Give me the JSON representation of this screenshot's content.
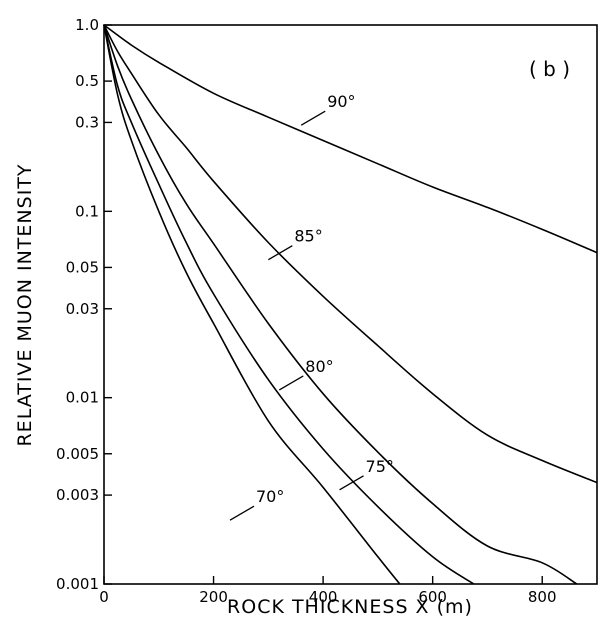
{
  "chart_data": {
    "type": "line",
    "title": "",
    "panel_label": "( b )",
    "xlabel": "ROCK THICKNESS X (m)",
    "ylabel": "RELATIVE MUON INTENSITY",
    "xlim": [
      0,
      900
    ],
    "ylim": [
      0.001,
      1.0
    ],
    "yscale": "log",
    "grid": false,
    "legend": "none",
    "x_ticks": [
      0,
      200,
      400,
      600,
      800
    ],
    "x_tick_labels": [
      "0",
      "200",
      "400",
      "600",
      "800"
    ],
    "y_ticks": [
      1.0,
      0.5,
      0.3,
      0.1,
      0.05,
      0.03,
      0.01,
      0.005,
      0.003,
      0.001
    ],
    "y_tick_labels": [
      "1.0",
      "0.5",
      "0.3",
      "0.1",
      "0.05",
      "0.03",
      "0.01",
      "0.005",
      "0.003",
      "0.001"
    ],
    "series": [
      {
        "name": "90°",
        "label_at": [
          360,
          0.29
        ],
        "x": [
          0,
          50,
          100,
          200,
          300,
          400,
          500,
          600,
          700,
          800,
          900
        ],
        "y": [
          1.0,
          0.78,
          0.63,
          0.43,
          0.32,
          0.24,
          0.18,
          0.135,
          0.105,
          0.08,
          0.06
        ]
      },
      {
        "name": "85°",
        "label_at": [
          300,
          0.055
        ],
        "x": [
          0,
          25,
          50,
          100,
          150,
          200,
          300,
          400,
          500,
          600,
          700,
          800,
          900
        ],
        "y": [
          1.0,
          0.72,
          0.55,
          0.33,
          0.22,
          0.145,
          0.068,
          0.035,
          0.019,
          0.0105,
          0.0063,
          0.0046,
          0.0035
        ]
      },
      {
        "name": "80°",
        "label_at": [
          320,
          0.011
        ],
        "x": [
          0,
          25,
          50,
          100,
          150,
          200,
          300,
          400,
          500,
          600,
          700,
          800,
          863
        ],
        "y": [
          1.0,
          0.6,
          0.4,
          0.2,
          0.11,
          0.067,
          0.025,
          0.0105,
          0.0051,
          0.0027,
          0.0016,
          0.0013,
          0.001
        ]
      },
      {
        "name": "75°",
        "label_at": [
          430,
          0.0032
        ],
        "x": [
          0,
          25,
          50,
          100,
          150,
          200,
          300,
          400,
          500,
          600,
          675
        ],
        "y": [
          1.0,
          0.47,
          0.3,
          0.14,
          0.068,
          0.036,
          0.0125,
          0.0053,
          0.0026,
          0.0014,
          0.001
        ]
      },
      {
        "name": "70°",
        "label_at": [
          230,
          0.0022
        ],
        "x": [
          0,
          25,
          50,
          100,
          150,
          200,
          300,
          400,
          500,
          540
        ],
        "y": [
          1.0,
          0.42,
          0.24,
          0.1,
          0.047,
          0.025,
          0.0075,
          0.0033,
          0.0014,
          0.001
        ]
      }
    ]
  }
}
